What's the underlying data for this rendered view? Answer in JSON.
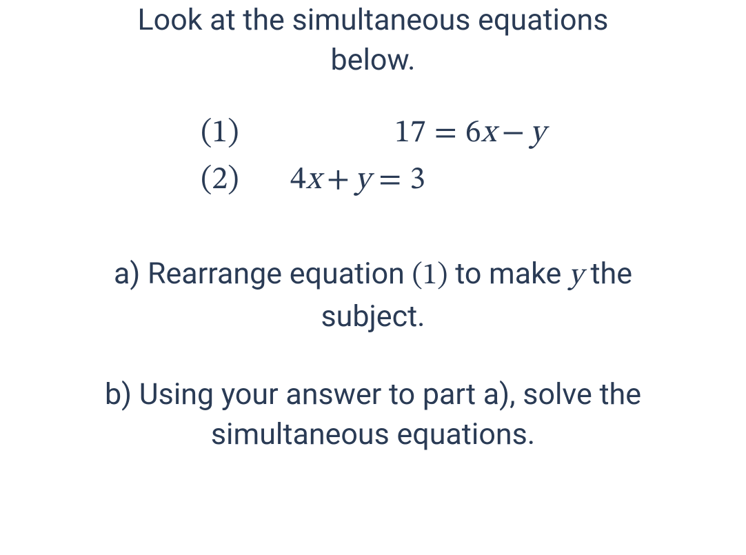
{
  "text_color": "#2a3b55",
  "background_color": "#ffffff",
  "intro": {
    "line1": "Look at the simultaneous equations",
    "line2": "below."
  },
  "equations": {
    "eq1": {
      "label": "(1)",
      "lhs": "17",
      "rhs_a_coef": "6",
      "rhs_a_var": "x",
      "op": "−",
      "rhs_b_var": "y"
    },
    "eq2": {
      "label": "(2)",
      "lhs_a_coef": "4",
      "lhs_a_var": "x",
      "op": "+",
      "lhs_b_var": "y",
      "rhs": "3"
    }
  },
  "part_a": {
    "prefix": "a) Rearrange equation ",
    "eqref": "(1)",
    "mid": " to make ",
    "var": "y",
    "suffix1": " the",
    "line2": "subject."
  },
  "part_b": {
    "line1": "b) Using your answer to part a), solve the",
    "line2": "simultaneous equations."
  }
}
